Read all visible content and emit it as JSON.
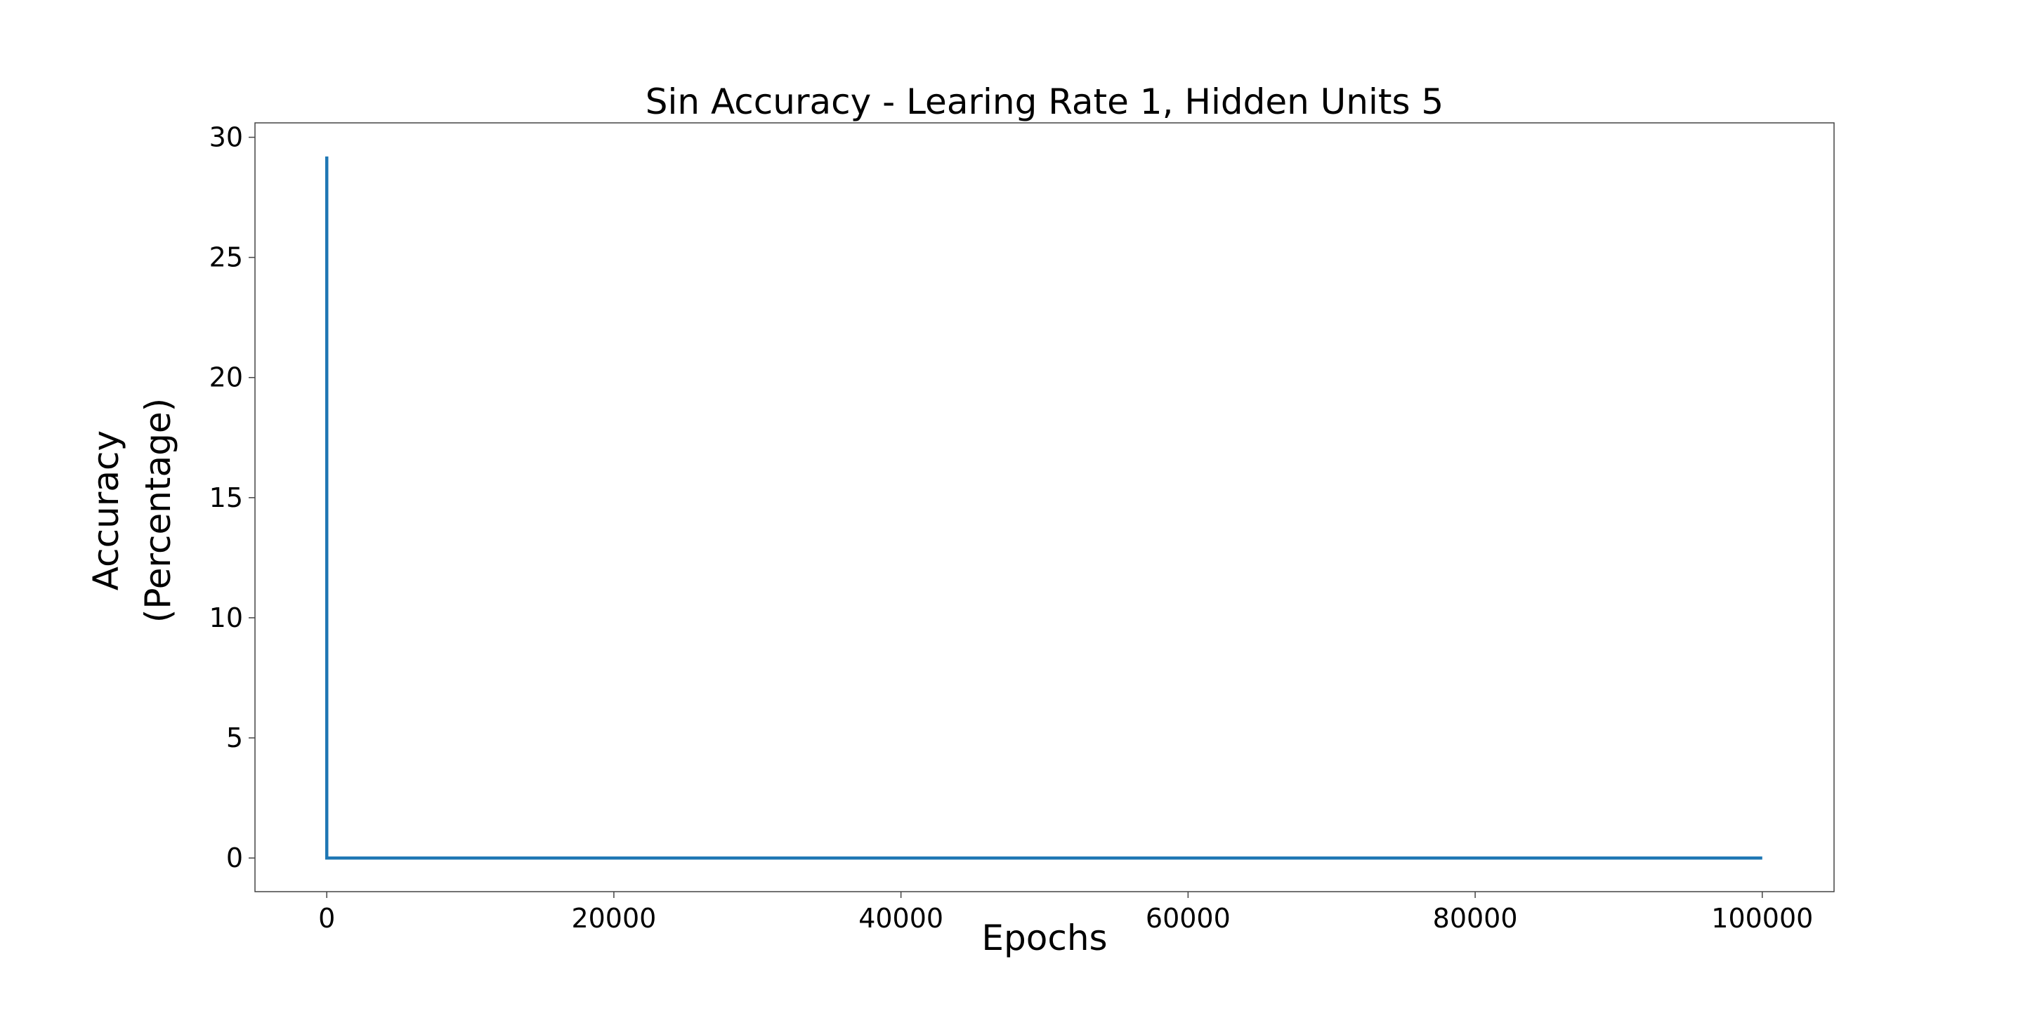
{
  "chart_data": {
    "type": "line",
    "title": "Sin Accuracy - Learing Rate 1, Hidden Units 5",
    "xlabel": "Epochs",
    "ylabel": [
      "Accuracy",
      "(Percentage)"
    ],
    "xlim": [
      -5000,
      105000
    ],
    "ylim": [
      -1.4,
      30.6
    ],
    "xticks": [
      0,
      20000,
      40000,
      60000,
      80000,
      100000
    ],
    "xtick_labels": [
      "0",
      "20000",
      "40000",
      "60000",
      "80000",
      "100000"
    ],
    "yticks": [
      0,
      5,
      10,
      15,
      20,
      25,
      30
    ],
    "ytick_labels": [
      "0",
      "5",
      "10",
      "15",
      "20",
      "25",
      "30"
    ],
    "grid": false,
    "legend": false,
    "series": [
      {
        "color": "#1f77b4",
        "x": [
          0,
          1,
          100000
        ],
        "y": [
          29.2,
          0,
          0
        ]
      }
    ]
  }
}
